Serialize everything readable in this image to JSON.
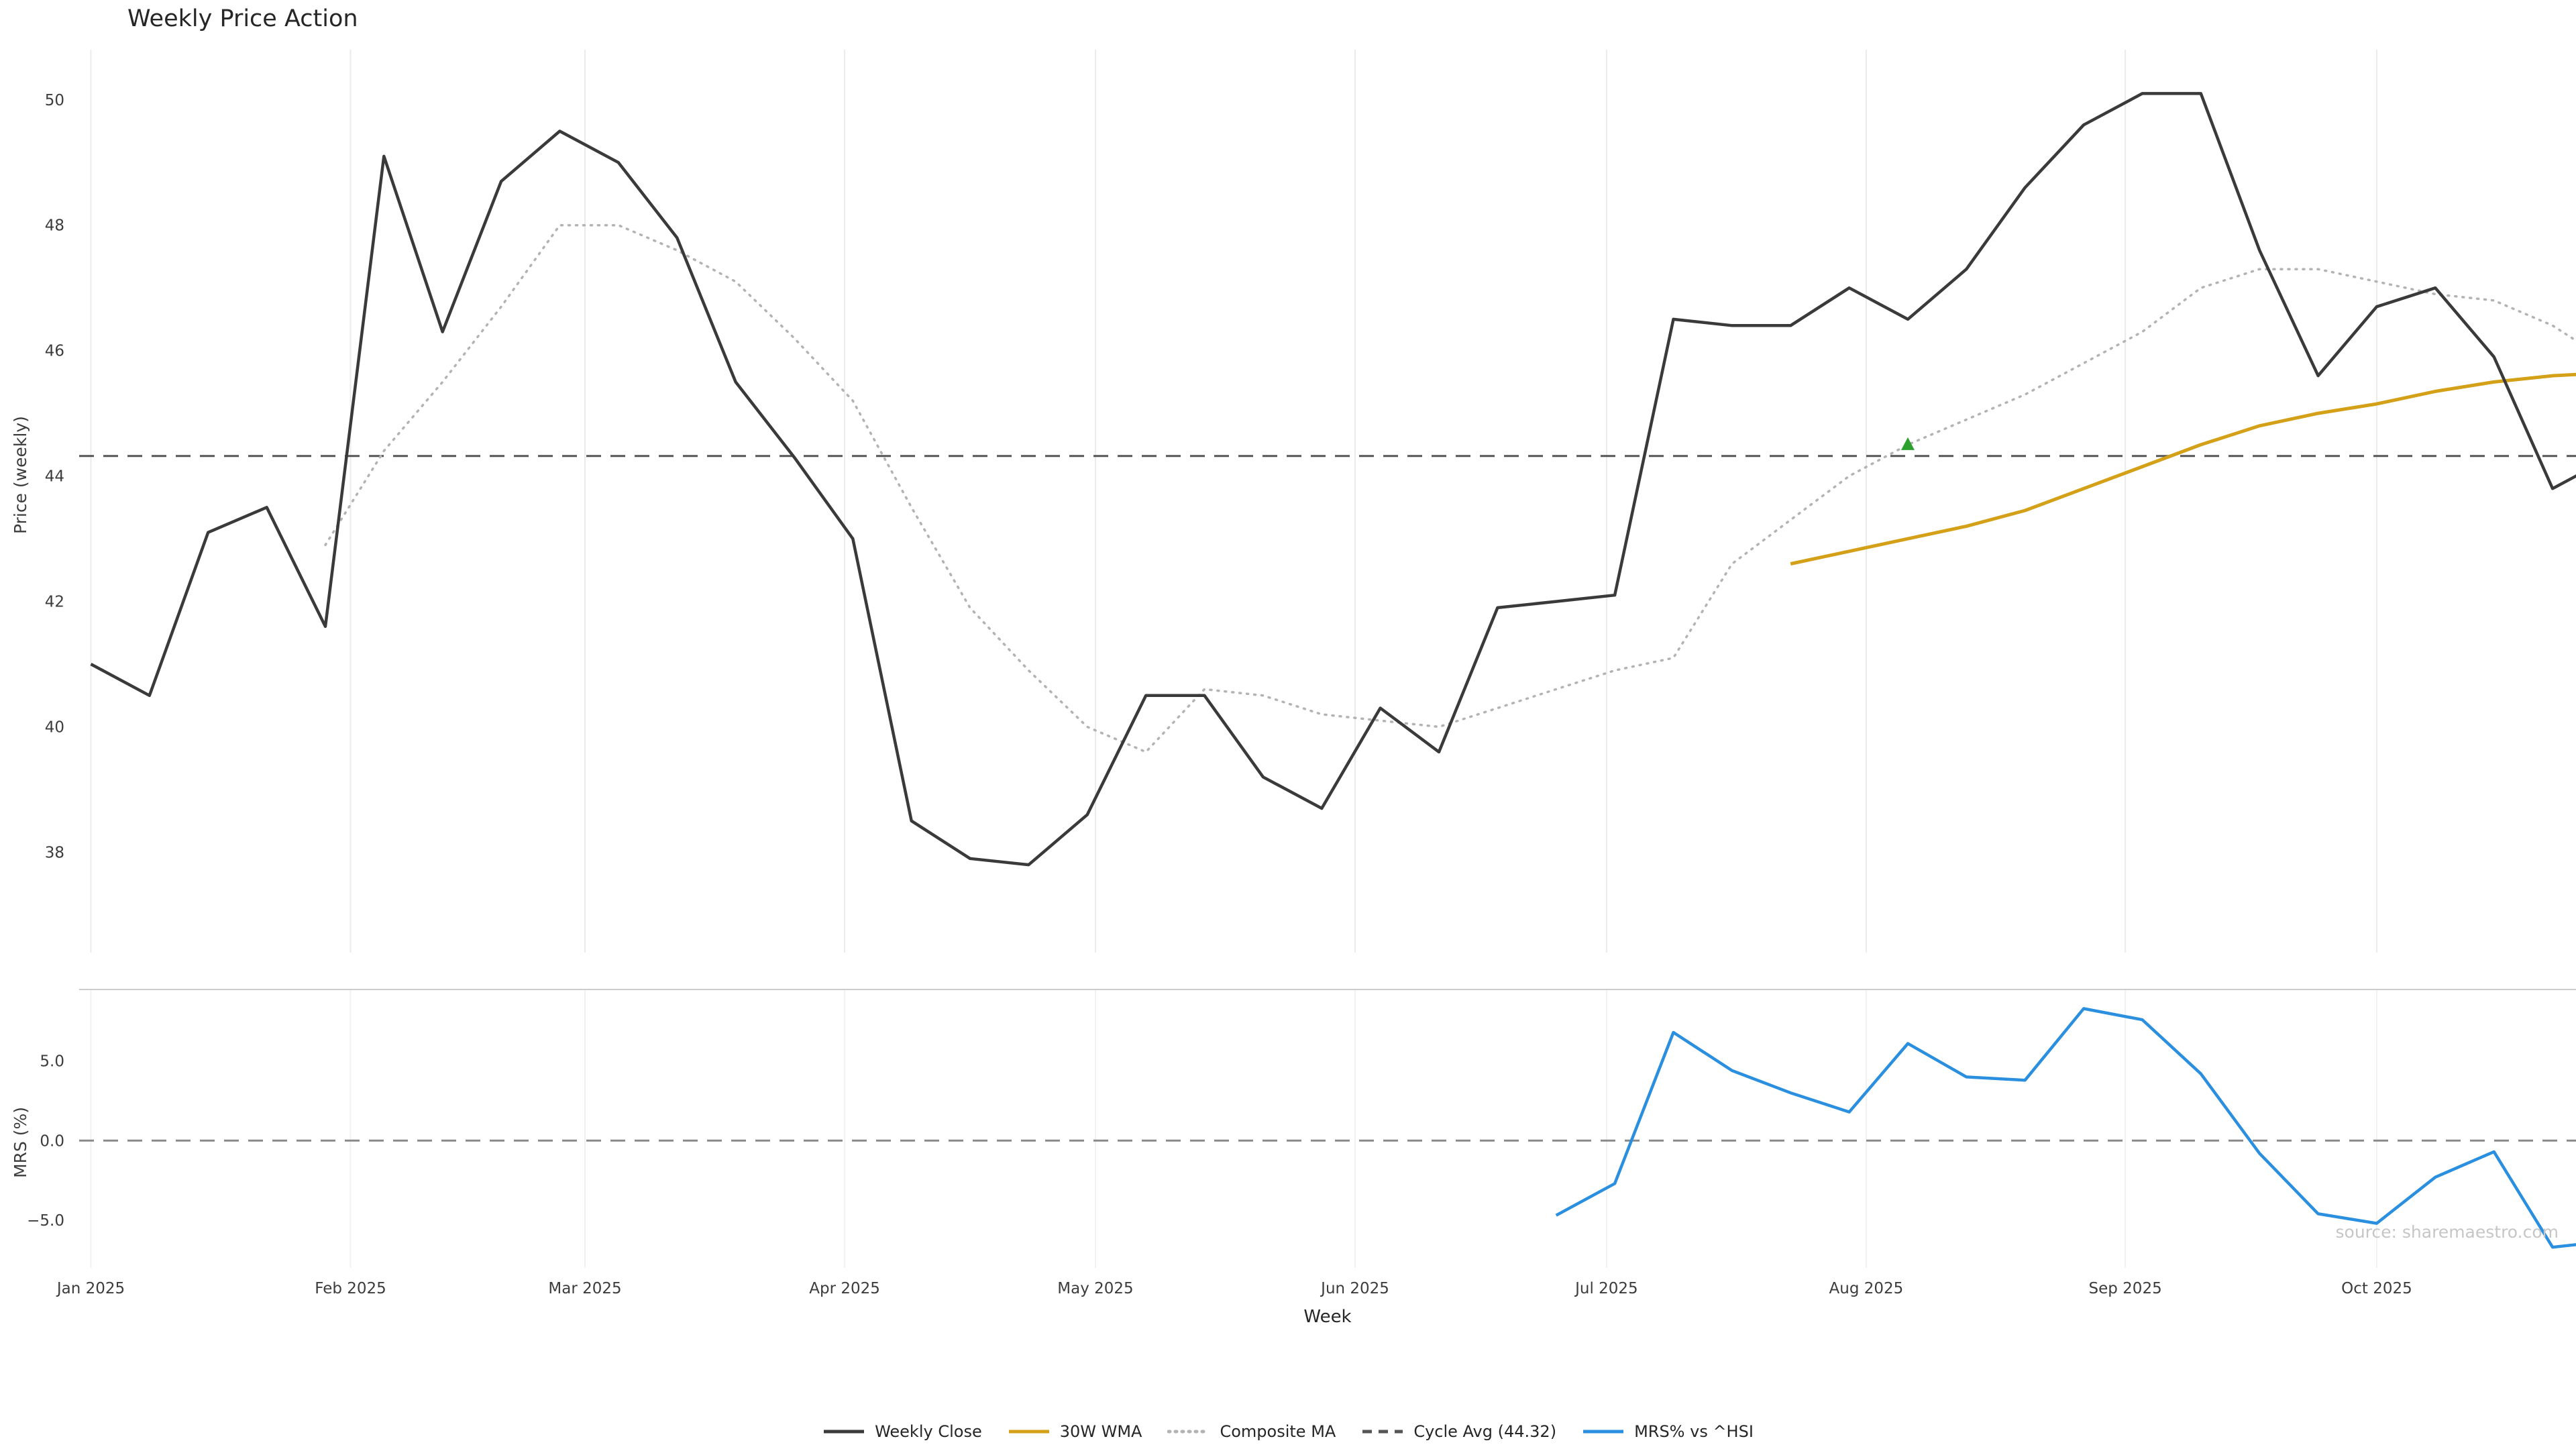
{
  "chart_data": {
    "type": "line",
    "title": "Weekly Price Action",
    "xlabel": "Week",
    "source": "source: sharemaestro.com",
    "x": {
      "unit": "weeks since 2025-01-01",
      "xlim": [
        -0.2,
        42.4
      ],
      "tick_weeks": [
        0,
        4.43,
        8.43,
        12.86,
        17.14,
        21.57,
        25.86,
        30.29,
        34.71,
        39.0
      ],
      "tick_labels": [
        "Jan 2025",
        "Feb 2025",
        "Mar 2025",
        "Apr 2025",
        "May 2025",
        "Jun 2025",
        "Jul 2025",
        "Aug 2025",
        "Sep 2025",
        "Oct 2025"
      ]
    },
    "panels": [
      {
        "id": "price",
        "ylabel": "Price (weekly)",
        "ylim": [
          36.4,
          50.8
        ],
        "yticks": [
          38,
          40,
          42,
          44,
          46,
          48,
          50
        ],
        "ytick_labels": [
          "38",
          "40",
          "42",
          "44",
          "46",
          "48",
          "50"
        ],
        "ref_lines": [
          {
            "label": "Cycle Avg (44.32)",
            "value": 44.32,
            "style": "dashed",
            "color": "#555555",
            "width": 3
          }
        ],
        "series": [
          {
            "name": "Composite MA",
            "color": "#b3b3b3",
            "style": "dotted",
            "width": 3.5,
            "x_start": 4,
            "x_step": 1,
            "values": [
              42.9,
              44.4,
              45.5,
              46.7,
              48.0,
              48.0,
              47.6,
              47.1,
              46.2,
              45.2,
              43.5,
              41.9,
              40.9,
              40.0,
              39.6,
              40.6,
              40.5,
              40.2,
              40.1,
              40.0,
              40.3,
              40.6,
              40.9,
              41.1,
              42.6,
              43.3,
              44.0,
              44.5,
              44.9,
              45.3,
              45.8,
              46.3,
              47.0,
              47.3,
              47.3,
              47.1,
              46.9,
              46.8,
              46.4,
              45.8
            ]
          },
          {
            "name": "30W WMA",
            "color": "#d4a017",
            "style": "solid",
            "width": 5,
            "x_start": 29,
            "x_step": 1,
            "values": [
              42.6,
              42.8,
              43.0,
              43.2,
              43.45,
              43.8,
              44.15,
              44.5,
              44.8,
              45.0,
              45.15,
              45.35,
              45.5,
              45.6,
              45.65
            ]
          },
          {
            "name": "Weekly Close",
            "color": "#3a3a3a",
            "style": "solid",
            "width": 4.5,
            "x_start": 0,
            "x_step": 1,
            "values": [
              41.0,
              40.5,
              43.1,
              43.5,
              41.6,
              49.1,
              46.3,
              48.7,
              49.5,
              49.0,
              47.8,
              45.5,
              44.3,
              43.0,
              38.5,
              37.9,
              37.8,
              38.6,
              40.5,
              40.5,
              39.2,
              38.7,
              40.3,
              39.6,
              41.9,
              42.0,
              42.1,
              46.5,
              46.4,
              46.4,
              47.0,
              46.5,
              47.3,
              48.6,
              49.6,
              50.1,
              50.1,
              47.6,
              45.6,
              46.7,
              47.0,
              45.9,
              43.8,
              44.3
            ]
          }
        ],
        "annotations": [
          {
            "type": "marker",
            "shape": "triangle-up",
            "color": "#2ca02c",
            "week": 31,
            "value": 44.5,
            "name": "buy-signal-marker"
          }
        ]
      },
      {
        "id": "mrs",
        "ylabel": "MRS (%)",
        "ylim": [
          -8.0,
          9.5
        ],
        "yticks": [
          -5,
          0,
          5
        ],
        "ytick_labels": [
          "−5.0",
          "0.0",
          "5.0"
        ],
        "ref_lines": [
          {
            "label": "zero",
            "value": 0,
            "style": "dashed",
            "color": "#8a8a8a",
            "width": 3
          }
        ],
        "series": [
          {
            "name": "MRS% vs ^HSI",
            "color": "#2b8fe0",
            "style": "solid",
            "width": 4.5,
            "x_start": 25,
            "x_step": 1,
            "values": [
              -4.7,
              -2.7,
              6.8,
              4.4,
              3.0,
              1.8,
              6.1,
              4.0,
              3.8,
              8.3,
              7.6,
              4.2,
              -0.8,
              -4.6,
              -5.2,
              -2.3,
              -0.7,
              -6.7,
              -6.3
            ]
          }
        ],
        "annotations": []
      }
    ],
    "legend": [
      {
        "label": "Weekly Close",
        "color": "#3a3a3a",
        "style": "solid"
      },
      {
        "label": "30W WMA",
        "color": "#d4a017",
        "style": "solid"
      },
      {
        "label": "Composite MA",
        "color": "#b3b3b3",
        "style": "dotted"
      },
      {
        "label": "Cycle Avg (44.32)",
        "color": "#555555",
        "style": "dashed"
      },
      {
        "label": "MRS% vs ^HSI",
        "color": "#2b8fe0",
        "style": "solid"
      }
    ]
  }
}
